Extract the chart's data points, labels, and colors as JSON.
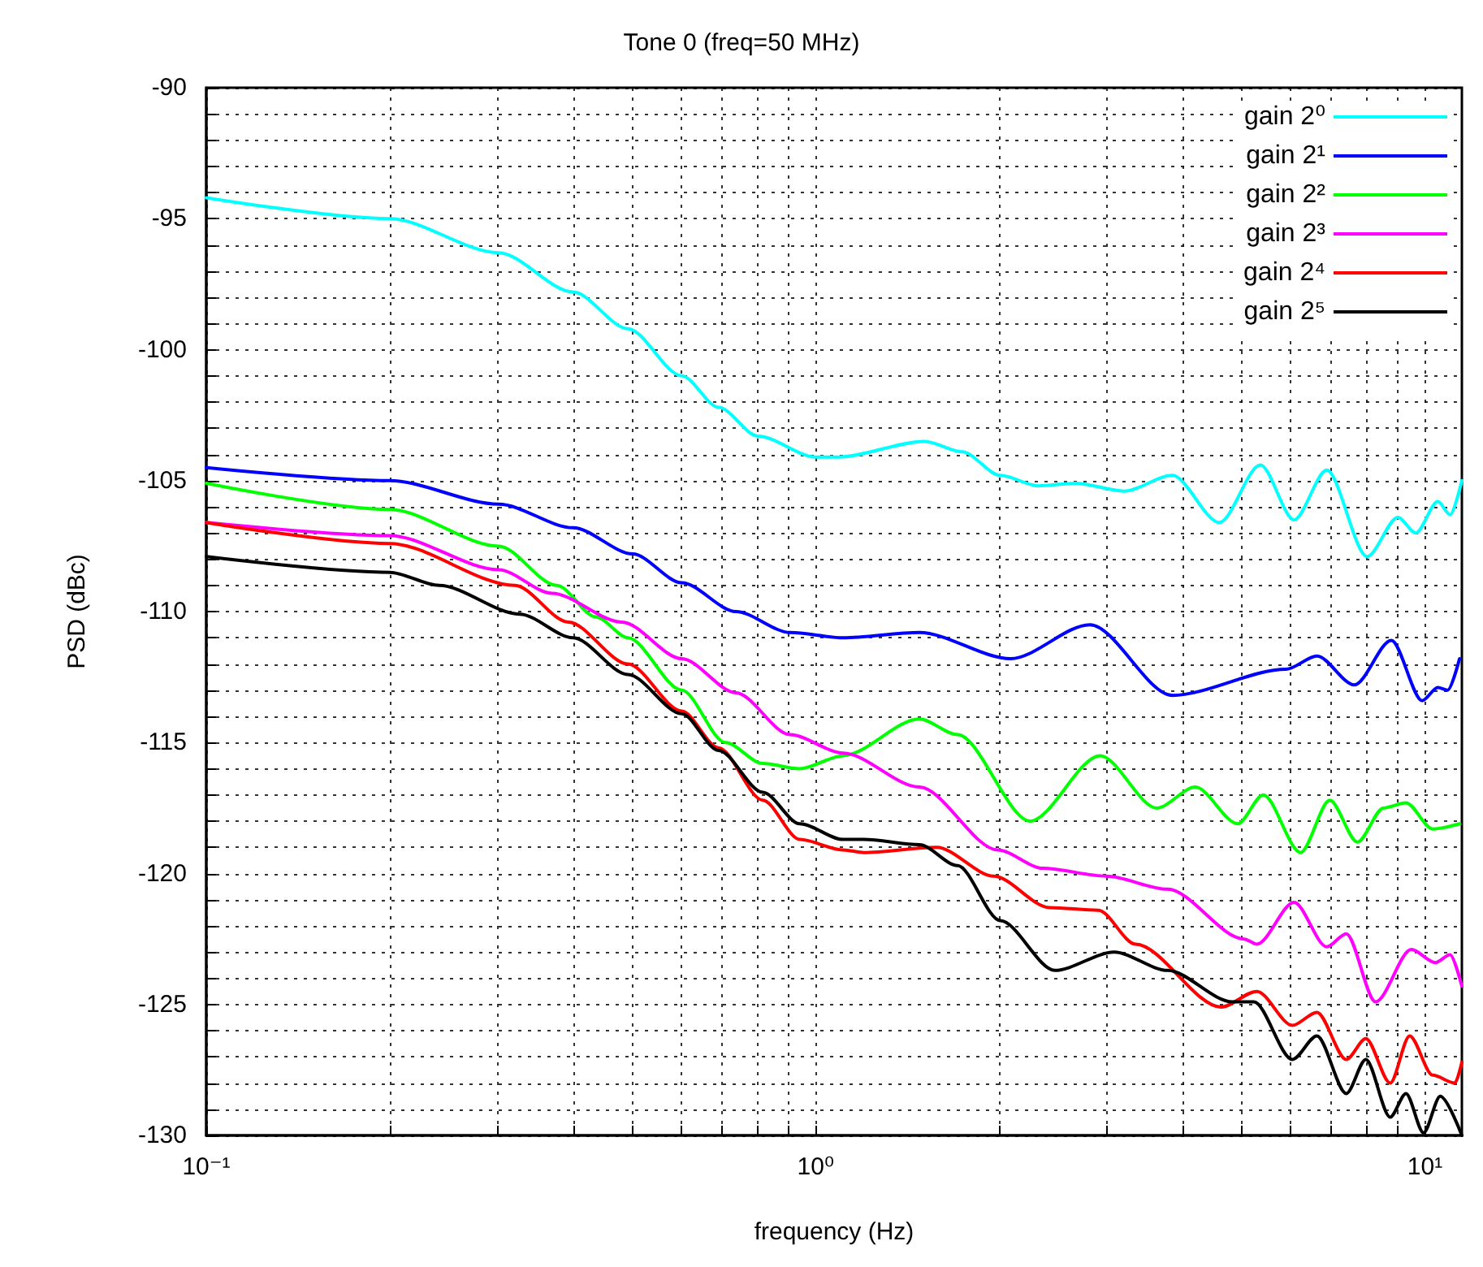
{
  "chart_data": {
    "type": "line",
    "title": "Tone 0 (freq=50 MHz)",
    "xlabel": "frequency (Hz)",
    "ylabel": "PSD (dBc)",
    "log": "x",
    "grid": true,
    "legend": "top right",
    "marker": "none",
    "line_style": "solid",
    "xlim": [
      0.1,
      11.5
    ],
    "ylim": [
      -130,
      -90
    ],
    "xticks": [
      {
        "value": 0.1,
        "label": "10⁻¹"
      },
      {
        "value": 0.2,
        "label": null
      },
      {
        "value": 0.3,
        "label": null
      },
      {
        "value": 0.4,
        "label": null
      },
      {
        "value": 0.5,
        "label": null
      },
      {
        "value": 0.6,
        "label": null
      },
      {
        "value": 0.7,
        "label": null
      },
      {
        "value": 0.8,
        "label": null
      },
      {
        "value": 0.9,
        "label": null
      },
      {
        "value": 1,
        "label": "10⁰"
      },
      {
        "value": 2,
        "label": null
      },
      {
        "value": 3,
        "label": null
      },
      {
        "value": 4,
        "label": null
      },
      {
        "value": 5,
        "label": null
      },
      {
        "value": 6,
        "label": null
      },
      {
        "value": 7,
        "label": null
      },
      {
        "value": 8,
        "label": null
      },
      {
        "value": 9,
        "label": null
      },
      {
        "value": 10,
        "label": "10¹"
      }
    ],
    "yticks": [
      -130,
      {
        "value": -129,
        "label": null
      },
      {
        "value": -128,
        "label": null
      },
      {
        "value": -127,
        "label": null
      },
      {
        "value": -126,
        "label": null
      },
      -125,
      {
        "value": -124,
        "label": null
      },
      {
        "value": -123,
        "label": null
      },
      {
        "value": -122,
        "label": null
      },
      {
        "value": -121,
        "label": null
      },
      -120,
      {
        "value": -119,
        "label": null
      },
      {
        "value": -118,
        "label": null
      },
      {
        "value": -117,
        "label": null
      },
      {
        "value": -116,
        "label": null
      },
      -115,
      {
        "value": -114,
        "label": null
      },
      {
        "value": -113,
        "label": null
      },
      {
        "value": -112,
        "label": null
      },
      {
        "value": -111,
        "label": null
      },
      -110,
      {
        "value": -109,
        "label": null
      },
      {
        "value": -108,
        "label": null
      },
      {
        "value": -107,
        "label": null
      },
      {
        "value": -106,
        "label": null
      },
      -105,
      {
        "value": -104,
        "label": null
      },
      {
        "value": -103,
        "label": null
      },
      {
        "value": -102,
        "label": null
      },
      {
        "value": -101,
        "label": null
      },
      -100,
      {
        "value": -99,
        "label": null
      },
      {
        "value": -98,
        "label": null
      },
      {
        "value": -97,
        "label": null
      },
      {
        "value": -96,
        "label": null
      },
      -95,
      {
        "value": -94,
        "label": null
      },
      {
        "value": -93,
        "label": null
      },
      {
        "value": -92,
        "label": null
      },
      {
        "value": -91,
        "label": null
      },
      -90
    ],
    "series": [
      {
        "name": "gain 2⁰",
        "color": "#00ffff",
        "x": [
          0.1,
          0.2,
          0.302,
          0.4,
          0.492,
          0.603,
          0.693,
          0.804,
          1.0,
          1.09,
          1.51,
          1.74,
          2.01,
          2.32,
          2.67,
          3.21,
          3.85,
          4.6,
          5.37,
          6.1,
          6.9,
          8.04,
          9.03,
          9.66,
          10.5,
          11.0,
          11.5
        ],
        "values": [
          -94.2,
          -95.0,
          -96.3,
          -97.8,
          -99.2,
          -101.0,
          -102.2,
          -103.3,
          -104.1,
          -104.1,
          -103.5,
          -103.9,
          -104.8,
          -105.2,
          -105.1,
          -105.4,
          -104.8,
          -106.6,
          -104.4,
          -106.5,
          -104.6,
          -107.9,
          -106.4,
          -107.0,
          -105.8,
          -106.3,
          -105.0
        ]
      },
      {
        "name": "gain 2¹",
        "color": "#0000ff",
        "x": [
          0.1,
          0.2,
          0.302,
          0.4,
          0.501,
          0.603,
          0.74,
          0.908,
          1.11,
          1.48,
          2.09,
          2.82,
          3.85,
          5.92,
          6.65,
          7.66,
          8.81,
          9.9,
          10.5,
          10.9,
          11.4
        ],
        "values": [
          -104.5,
          -105.0,
          -105.9,
          -106.8,
          -107.8,
          -108.9,
          -110.0,
          -110.8,
          -111.0,
          -110.8,
          -111.8,
          -110.5,
          -113.2,
          -112.2,
          -111.7,
          -112.8,
          -111.1,
          -113.4,
          -112.9,
          -113.0,
          -111.8
        ]
      },
      {
        "name": "gain 2²",
        "color": "#00ff00",
        "x": [
          0.1,
          0.2,
          0.302,
          0.376,
          0.436,
          0.492,
          0.603,
          0.711,
          0.819,
          0.942,
          1.11,
          1.48,
          1.71,
          2.25,
          2.93,
          3.63,
          4.2,
          4.93,
          5.43,
          6.25,
          6.98,
          7.75,
          8.55,
          9.31,
          10.3,
          11.4
        ],
        "values": [
          -105.1,
          -106.1,
          -107.5,
          -109.0,
          -110.2,
          -111.0,
          -113.0,
          -115.0,
          -115.8,
          -116.0,
          -115.5,
          -114.1,
          -114.7,
          -118.0,
          -115.5,
          -117.5,
          -116.7,
          -118.1,
          -117.0,
          -119.2,
          -117.2,
          -118.8,
          -117.5,
          -117.3,
          -118.3,
          -118.1
        ]
      },
      {
        "name": "gain 2³",
        "color": "#ff00ff",
        "x": [
          0.1,
          0.2,
          0.302,
          0.369,
          0.481,
          0.603,
          0.74,
          0.908,
          1.11,
          1.48,
          1.99,
          2.36,
          3.0,
          3.78,
          5.05,
          5.3,
          6.1,
          6.9,
          7.43,
          8.3,
          9.5,
          10.4,
          11.0,
          11.5
        ],
        "values": [
          -106.6,
          -107.1,
          -108.4,
          -109.3,
          -110.4,
          -111.8,
          -113.1,
          -114.7,
          -115.4,
          -116.7,
          -119.1,
          -119.8,
          -120.1,
          -120.6,
          -122.5,
          -122.7,
          -121.1,
          -122.8,
          -122.3,
          -124.9,
          -122.9,
          -123.4,
          -123.1,
          -124.3
        ]
      },
      {
        "name": "gain 2⁴",
        "color": "#ff0000",
        "x": [
          0.1,
          0.2,
          0.321,
          0.393,
          0.492,
          0.603,
          0.693,
          0.819,
          0.942,
          1.11,
          1.2,
          1.58,
          1.96,
          2.42,
          2.91,
          3.35,
          4.63,
          5.3,
          6.06,
          6.65,
          7.43,
          8.0,
          8.77,
          9.44,
          10.3,
          11.2,
          11.5
        ],
        "values": [
          -106.6,
          -107.4,
          -109.0,
          -110.4,
          -112.0,
          -113.8,
          -115.2,
          -117.2,
          -118.7,
          -119.1,
          -119.2,
          -119.0,
          -120.1,
          -121.3,
          -121.4,
          -122.7,
          -125.1,
          -124.5,
          -125.8,
          -125.3,
          -127.1,
          -126.3,
          -128.0,
          -126.2,
          -127.7,
          -128.0,
          -127.2
        ]
      },
      {
        "name": "gain 2⁵",
        "color": "#000000",
        "x": [
          0.1,
          0.2,
          0.241,
          0.327,
          0.4,
          0.492,
          0.603,
          0.693,
          0.819,
          0.942,
          1.11,
          1.2,
          1.48,
          1.71,
          2.01,
          2.47,
          3.09,
          3.78,
          4.83,
          5.24,
          6.06,
          6.65,
          7.43,
          8.0,
          8.77,
          9.31,
          9.95,
          10.6,
          11.5
        ],
        "values": [
          -107.9,
          -108.5,
          -109.0,
          -110.1,
          -111.0,
          -112.4,
          -113.9,
          -115.3,
          -116.9,
          -118.1,
          -118.7,
          -118.7,
          -118.9,
          -119.7,
          -121.8,
          -123.7,
          -123.0,
          -123.7,
          -124.9,
          -124.9,
          -127.1,
          -126.2,
          -128.4,
          -127.1,
          -129.3,
          -128.4,
          -129.9,
          -128.5,
          -130.0
        ]
      }
    ]
  }
}
